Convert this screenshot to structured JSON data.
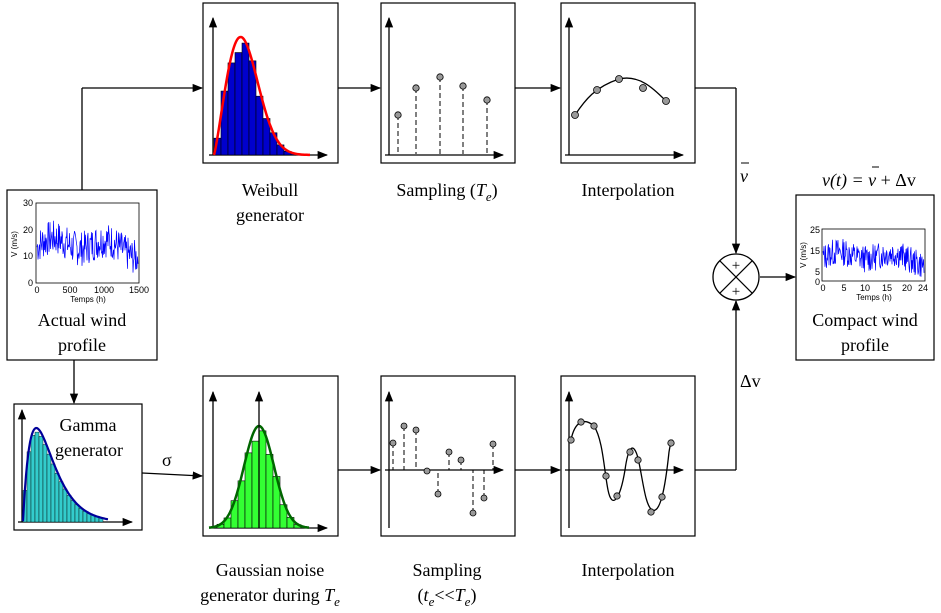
{
  "blocks": {
    "weibull": {
      "line1": "Weibull",
      "line2": "generator"
    },
    "sampling_top": {
      "text": "Sampling (",
      "var": "T",
      "sub": "e",
      "close": ")"
    },
    "interp_top": {
      "text": "Interpolation"
    },
    "actual": {
      "line1": "Actual wind",
      "line2": "profile"
    },
    "gamma": {
      "line1": "Gamma",
      "line2": "generator"
    },
    "gaussian": {
      "line1": "Gaussian noise",
      "line2": "generator during ",
      "var": "T",
      "sub": "e"
    },
    "sampling_bottom": {
      "line1": "Sampling",
      "open": "(",
      "t": "t",
      "t_sub": "e",
      "lt": "<<",
      "T": "T",
      "T_sub": "e",
      "close": ")"
    },
    "interp_bottom": {
      "text": "Interpolation"
    },
    "compact": {
      "line1": "Compact wind",
      "line2": "profile"
    }
  },
  "signals": {
    "sigma": "σ",
    "vbar": "v",
    "delta_v": "Δv",
    "sum_plus_top": "+",
    "sum_plus_bottom": "+",
    "equation": {
      "lhs": "v(t) = ",
      "v": "v",
      "rest": " + Δv"
    }
  },
  "actual_plot": {
    "ylabel": "V (m/s)",
    "xlabel": "Temps (h)",
    "yticks": [
      "30",
      "20",
      "10",
      "0"
    ],
    "xticks": [
      "0",
      "500",
      "1000",
      "1500"
    ]
  },
  "compact_plot": {
    "ylabel": "V (m/s)",
    "xlabel": "Temps (h)",
    "yticks": [
      "25",
      "15",
      "5",
      "0"
    ],
    "xticks": [
      "0",
      "5",
      "10",
      "15",
      "20",
      "24"
    ]
  },
  "colors": {
    "weibull_bars": "#0000cc",
    "weibull_curve": "#ff0000",
    "gamma_bars": "#33cccc",
    "gamma_curve": "#000099",
    "gauss_bars": "#33ff33",
    "gauss_curve": "#006600",
    "signal": "#0000ff",
    "marker": "#999999"
  }
}
